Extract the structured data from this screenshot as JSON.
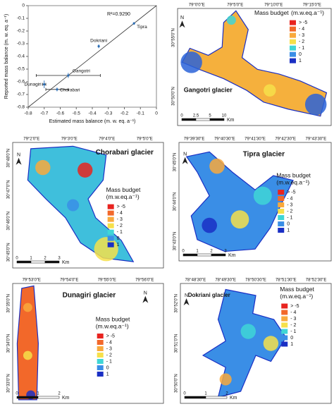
{
  "chart_data": {
    "type": "scatter",
    "x_label": "Estimated mass balance (m. w. eq. a⁻¹)",
    "y_label": "Reported mass balance (m. w. eq. a⁻¹)",
    "annotation": "R²=0.9290",
    "labels": [
      "Tipra",
      "Dokriani",
      "Gangotri",
      "Dunagiri",
      "Chorabari"
    ],
    "x": [
      -0.14,
      -0.36,
      -0.55,
      -0.7,
      -0.62
    ],
    "y": [
      -0.14,
      -0.32,
      -0.55,
      -0.62,
      -0.66
    ],
    "x_err": [
      0,
      0,
      0.2,
      0.01,
      0.07
    ],
    "y_err": [
      0.01,
      0.015,
      0.02,
      0.03,
      0.015
    ],
    "color": "#2a6db5",
    "xlim": [
      -0.8,
      0
    ],
    "ylim": [
      -0.8,
      0
    ],
    "xticks": [
      -0.8,
      -0.7,
      -0.6,
      -0.5,
      -0.4,
      -0.3,
      -0.2,
      -0.1,
      0
    ],
    "yticks": [
      -0.8,
      -0.7,
      -0.6,
      -0.5,
      -0.4,
      -0.3,
      -0.2,
      -0.1,
      0
    ]
  },
  "legend": {
    "title": "Mass budget",
    "unit": "(m.w.eq.a⁻¹)",
    "classes": [
      {
        "label": "> -5",
        "color": "#e8231f"
      },
      {
        "label": "- 4",
        "color": "#f2682a"
      },
      {
        "label": "- 3",
        "color": "#f9a93c"
      },
      {
        "label": "- 2",
        "color": "#f6e04a"
      },
      {
        "label": "- 1",
        "color": "#3fd6d6"
      },
      {
        "label": "0",
        "color": "#3a8ee6"
      },
      {
        "label": "1",
        "color": "#1a2fc4"
      }
    ]
  },
  "north": "N",
  "maps": [
    {
      "title": "Gangotri glacier",
      "lon_labels": [
        "79°0'0\"E",
        "79°5'0\"E",
        "79°10'0\"E",
        "79°15'0\"E"
      ],
      "lat_labels": [
        "30°55'0\"N",
        "30°50'0\"N"
      ],
      "scale_labels": [
        "0",
        "2.5",
        "5",
        "10"
      ],
      "unit": "Km"
    },
    {
      "title": "Chorabari glacier",
      "lon_labels": [
        "79°2'0\"E",
        "79°3'0\"E",
        "79°4'0\"E",
        "79°5'0\"E"
      ],
      "lat_labels": [
        "30°48'0\"N",
        "30°47'0\"N",
        "30°46'0\"N",
        "30°45'0\"N"
      ],
      "scale_labels": [
        "0",
        "1",
        "2",
        "3"
      ],
      "unit": "Km"
    },
    {
      "title": "Tipra glacier",
      "lon_labels": [
        "79°39'30\"E",
        "79°40'30\"E",
        "79°41'30\"E",
        "79°42'30\"E",
        "79°43'30\"E"
      ],
      "lat_labels": [
        "30°45'0\"N",
        "30°44'0\"N",
        "30°43'0\"N"
      ],
      "scale_labels": [
        "0",
        "1",
        "2",
        "3"
      ],
      "unit": "Km"
    },
    {
      "title": "Dunagiri glacier",
      "lon_labels": [
        "79°53'0\"E",
        "79°54'0\"E",
        "79°55'0\"E",
        "79°56'0\"E"
      ],
      "lat_labels": [
        "30°35'0\"N",
        "30°34'0\"N",
        "30°33'0\"N"
      ],
      "scale_labels": [
        "0",
        "1",
        "2"
      ],
      "unit": "Km"
    },
    {
      "title": "Dokriani glacier",
      "lon_labels": [
        "78°48'30\"E",
        "78°49'30\"E",
        "78°50'30\"E",
        "78°51'30\"E",
        "78°52'30\"E"
      ],
      "lat_labels": [
        "30°52'0\"N",
        "30°51'0\"N",
        "30°50'0\"N"
      ],
      "scale_labels": [
        "0",
        "1",
        "2"
      ],
      "unit": "Km"
    }
  ]
}
